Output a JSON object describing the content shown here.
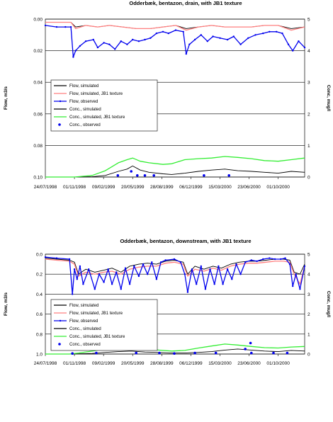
{
  "chart_data": [
    {
      "type": "line",
      "title": "Odderbæk, bentazon, drain, with JB1 texture",
      "ylabel_left": "Flow, m3/s",
      "ylabel_right": "Conc, mug/l",
      "y_left_ticks": [
        "0.00",
        "0.02",
        "0.04",
        "0.06",
        "0.08",
        "0.10"
      ],
      "y_right_ticks": [
        "5",
        "4",
        "3",
        "2",
        "1",
        "0"
      ],
      "ylim_left": [
        0.1,
        0.0
      ],
      "ylim_right": [
        0,
        5
      ],
      "left_axis_inverted": true,
      "x_tick_labels": [
        "24/07/1998",
        "01/11/1998",
        "09/02/1999",
        "20/05/1999",
        "28/08/1999",
        "06/12/1999",
        "15/03/2000",
        "23/06/2000",
        "01/10/2000"
      ],
      "x_tick_dates": [
        "1998-07-24",
        "1998-11-01",
        "1999-02-09",
        "1999-05-20",
        "1999-08-28",
        "1999-12-06",
        "2000-03-15",
        "2000-06-23",
        "2000-10-01"
      ],
      "x_range": [
        "1998-07-24",
        "2000-12-31"
      ],
      "grid": "horizontal",
      "legend_placement": "left-middle",
      "legend": [
        "Flow, simulated",
        "Flow, simulated, JB1 texture",
        "Flow, observed",
        "Conc., simulated",
        "Conc., simulated, JB1 texture",
        "Conc., observed"
      ],
      "series": [
        {
          "name": "Flow, simulated",
          "axis": "left",
          "color": "#000000",
          "x": [
            "1998-07-24",
            "1998-09-01",
            "1998-10-20",
            "1998-11-05",
            "1998-12-10",
            "1999-01-20",
            "1999-03-01",
            "1999-04-15",
            "1999-06-01",
            "1999-07-20",
            "1999-09-01",
            "1999-10-15",
            "1999-11-20",
            "2000-01-01",
            "2000-02-15",
            "2000-04-01",
            "2000-05-15",
            "2000-07-01",
            "2000-08-15",
            "2000-10-01",
            "2000-11-15",
            "2000-12-31"
          ],
          "values": [
            0.002,
            0.002,
            0.002,
            0.005,
            0.004,
            0.005,
            0.004,
            0.005,
            0.006,
            0.006,
            0.005,
            0.004,
            0.006,
            0.005,
            0.004,
            0.005,
            0.005,
            0.005,
            0.004,
            0.004,
            0.006,
            0.005
          ]
        },
        {
          "name": "Flow, simulated, JB1 texture",
          "axis": "left",
          "color": "#ff7f7f",
          "x": [
            "1998-07-24",
            "1998-09-01",
            "1998-10-20",
            "1998-11-05",
            "1998-12-10",
            "1999-01-20",
            "1999-03-01",
            "1999-04-15",
            "1999-06-01",
            "1999-07-20",
            "1999-09-01",
            "1999-10-15",
            "1999-11-20",
            "2000-01-01",
            "2000-02-15",
            "2000-04-01",
            "2000-05-15",
            "2000-07-01",
            "2000-08-15",
            "2000-10-01",
            "2000-11-15",
            "2000-12-31"
          ],
          "values": [
            0.002,
            0.002,
            0.002,
            0.006,
            0.004,
            0.005,
            0.004,
            0.005,
            0.006,
            0.006,
            0.005,
            0.004,
            0.007,
            0.005,
            0.004,
            0.005,
            0.005,
            0.005,
            0.004,
            0.004,
            0.007,
            0.005
          ]
        },
        {
          "name": "Flow, observed",
          "axis": "left",
          "color": "#0000ee",
          "x": [
            "1998-07-24",
            "1998-09-01",
            "1998-10-01",
            "1998-10-20",
            "1998-10-28",
            "1998-11-05",
            "1998-11-20",
            "1998-12-10",
            "1999-01-05",
            "1999-01-20",
            "1999-02-10",
            "1999-03-01",
            "1999-03-20",
            "1999-04-10",
            "1999-05-01",
            "1999-05-20",
            "1999-06-10",
            "1999-07-01",
            "1999-07-20",
            "1999-08-10",
            "1999-09-01",
            "1999-09-20",
            "1999-10-15",
            "1999-11-10",
            "1999-11-20",
            "1999-12-01",
            "1999-12-20",
            "2000-01-10",
            "2000-02-01",
            "2000-02-20",
            "2000-03-15",
            "2000-04-10",
            "2000-05-01",
            "2000-05-25",
            "2000-06-20",
            "2000-07-15",
            "2000-08-10",
            "2000-09-01",
            "2000-09-25",
            "2000-10-15",
            "2000-11-05",
            "2000-11-20",
            "2000-12-10",
            "2000-12-31"
          ],
          "values": [
            0.004,
            0.005,
            0.005,
            0.005,
            0.024,
            0.02,
            0.017,
            0.014,
            0.013,
            0.018,
            0.015,
            0.016,
            0.019,
            0.014,
            0.016,
            0.013,
            0.014,
            0.013,
            0.012,
            0.009,
            0.008,
            0.009,
            0.007,
            0.008,
            0.022,
            0.016,
            0.013,
            0.01,
            0.014,
            0.011,
            0.012,
            0.013,
            0.011,
            0.016,
            0.012,
            0.01,
            0.009,
            0.008,
            0.008,
            0.009,
            0.016,
            0.02,
            0.014,
            0.018
          ]
        },
        {
          "name": "Conc., simulated",
          "axis": "right",
          "color": "#000000",
          "x": [
            "1998-07-24",
            "1998-11-01",
            "1999-01-01",
            "1999-02-15",
            "1999-04-01",
            "1999-05-01",
            "1999-05-20",
            "1999-06-15",
            "1999-07-15",
            "1999-09-01",
            "1999-10-01",
            "1999-11-15",
            "2000-01-01",
            "2000-02-15",
            "2000-04-01",
            "2000-05-15",
            "2000-07-01",
            "2000-08-15",
            "2000-10-01",
            "2000-11-15",
            "2000-12-31"
          ],
          "values": [
            0,
            0,
            0.01,
            0.05,
            0.18,
            0.25,
            0.35,
            0.22,
            0.15,
            0.1,
            0.08,
            0.12,
            0.18,
            0.22,
            0.25,
            0.2,
            0.18,
            0.15,
            0.12,
            0.18,
            0.15
          ]
        },
        {
          "name": "Conc., simulated, JB1 texture",
          "axis": "right",
          "color": "#33ee33",
          "x": [
            "1998-07-24",
            "1998-11-01",
            "1999-01-01",
            "1999-02-15",
            "1999-04-01",
            "1999-05-01",
            "1999-05-20",
            "1999-06-15",
            "1999-07-15",
            "1999-09-01",
            "1999-10-01",
            "1999-11-15",
            "2000-01-01",
            "2000-02-15",
            "2000-04-01",
            "2000-05-15",
            "2000-07-01",
            "2000-08-15",
            "2000-10-01",
            "2000-11-15",
            "2000-12-31"
          ],
          "values": [
            0,
            0,
            0.05,
            0.2,
            0.45,
            0.55,
            0.6,
            0.5,
            0.45,
            0.4,
            0.42,
            0.55,
            0.58,
            0.6,
            0.65,
            0.62,
            0.58,
            0.52,
            0.5,
            0.55,
            0.6
          ]
        },
        {
          "name": "Conc., observed",
          "axis": "right",
          "color": "#0000ee",
          "x": [
            "1999-03-30",
            "1999-05-15",
            "1999-06-05",
            "1999-07-01",
            "1999-08-01",
            "2000-01-20",
            "2000-04-15"
          ],
          "values": [
            0.05,
            0.18,
            0.05,
            0.05,
            0.05,
            0.05,
            0.05
          ]
        }
      ]
    },
    {
      "type": "line",
      "title": "Odderbæk, bentazon, downstream, with JB1 texture",
      "ylabel_left": "Flow, m3/s",
      "ylabel_right": "Conc, mug/l",
      "y_left_ticks": [
        "0.0",
        "0.2",
        "0.4",
        "0.6",
        "0.8",
        "1.0"
      ],
      "y_right_ticks": [
        "5",
        "4",
        "3",
        "2",
        "1",
        "0"
      ],
      "ylim_left": [
        1.0,
        0.0
      ],
      "ylim_right": [
        0,
        5
      ],
      "left_axis_inverted": true,
      "x_tick_labels": [
        "24/07/1998",
        "01/11/1998",
        "09/02/1999",
        "20/05/1999",
        "28/08/1999",
        "06/12/1999",
        "15/03/2000",
        "23/06/2000",
        "01/10/2000"
      ],
      "x_tick_dates": [
        "1998-07-24",
        "1998-11-01",
        "1999-02-09",
        "1999-05-20",
        "1999-08-28",
        "1999-12-06",
        "2000-03-15",
        "2000-06-23",
        "2000-10-01"
      ],
      "x_range": [
        "1998-07-24",
        "2000-12-31"
      ],
      "grid": "horizontal",
      "legend_placement": "left-middle",
      "legend": [
        "Flow, simulated",
        "Flow, simulated, JB1 texture",
        "Flow, observed",
        "Conc., simulated",
        "Conc., simulated, JB1 texture",
        "Conc., observed"
      ],
      "series": [
        {
          "name": "Flow, simulated",
          "axis": "left",
          "color": "#000000",
          "x": [
            "1998-07-24",
            "1998-09-01",
            "1998-10-15",
            "1998-11-01",
            "1998-11-15",
            "1998-12-10",
            "1999-01-10",
            "1999-02-10",
            "1999-03-10",
            "1999-04-10",
            "1999-05-10",
            "1999-06-10",
            "1999-07-10",
            "1999-08-10",
            "1999-09-10",
            "1999-10-10",
            "1999-11-10",
            "1999-11-25",
            "1999-12-20",
            "2000-01-20",
            "2000-02-20",
            "2000-03-20",
            "2000-04-20",
            "2000-05-20",
            "2000-06-20",
            "2000-07-20",
            "2000-08-20",
            "2000-09-20",
            "2000-10-20",
            "2000-11-10",
            "2000-11-25",
            "2000-12-15",
            "2000-12-31"
          ],
          "values": [
            0.04,
            0.05,
            0.06,
            0.08,
            0.2,
            0.15,
            0.18,
            0.16,
            0.14,
            0.18,
            0.12,
            0.1,
            0.09,
            0.1,
            0.07,
            0.06,
            0.08,
            0.2,
            0.12,
            0.15,
            0.12,
            0.14,
            0.1,
            0.08,
            0.07,
            0.07,
            0.06,
            0.05,
            0.05,
            0.06,
            0.18,
            0.2,
            0.1
          ]
        },
        {
          "name": "Flow, simulated, JB1 texture",
          "axis": "left",
          "color": "#ff7f7f",
          "x": [
            "1998-07-24",
            "1998-09-01",
            "1998-10-15",
            "1998-11-01",
            "1998-11-15",
            "1998-12-10",
            "1999-01-10",
            "1999-02-10",
            "1999-03-10",
            "1999-04-10",
            "1999-05-10",
            "1999-06-10",
            "1999-07-10",
            "1999-08-10",
            "1999-09-10",
            "1999-10-10",
            "1999-11-10",
            "1999-11-25",
            "1999-12-20",
            "2000-01-20",
            "2000-02-20",
            "2000-03-20",
            "2000-04-20",
            "2000-05-20",
            "2000-06-20",
            "2000-07-20",
            "2000-08-20",
            "2000-09-20",
            "2000-10-20",
            "2000-11-10",
            "2000-11-25",
            "2000-12-15",
            "2000-12-31"
          ],
          "values": [
            0.05,
            0.06,
            0.07,
            0.1,
            0.22,
            0.18,
            0.2,
            0.18,
            0.17,
            0.2,
            0.15,
            0.13,
            0.12,
            0.12,
            0.09,
            0.08,
            0.1,
            0.22,
            0.15,
            0.17,
            0.14,
            0.16,
            0.12,
            0.1,
            0.09,
            0.09,
            0.08,
            0.07,
            0.07,
            0.08,
            0.2,
            0.3,
            0.12
          ]
        },
        {
          "name": "Flow, observed",
          "axis": "left",
          "color": "#0000ee",
          "x": [
            "1998-07-24",
            "1998-09-01",
            "1998-10-15",
            "1998-10-25",
            "1998-11-01",
            "1998-11-10",
            "1998-11-20",
            "1998-12-01",
            "1998-12-20",
            "1999-01-10",
            "1999-01-25",
            "1999-02-10",
            "1999-02-25",
            "1999-03-10",
            "1999-03-25",
            "1999-04-10",
            "1999-04-25",
            "1999-05-10",
            "1999-05-25",
            "1999-06-10",
            "1999-06-25",
            "1999-07-10",
            "1999-07-25",
            "1999-08-10",
            "1999-08-25",
            "1999-09-10",
            "1999-10-10",
            "1999-11-01",
            "1999-11-15",
            "1999-11-25",
            "1999-12-10",
            "1999-12-25",
            "2000-01-10",
            "2000-01-25",
            "2000-02-10",
            "2000-02-25",
            "2000-03-10",
            "2000-03-25",
            "2000-04-10",
            "2000-04-25",
            "2000-05-10",
            "2000-05-25",
            "2000-06-10",
            "2000-07-01",
            "2000-07-20",
            "2000-08-10",
            "2000-09-01",
            "2000-09-20",
            "2000-10-10",
            "2000-10-25",
            "2000-11-10",
            "2000-11-20",
            "2000-12-01",
            "2000-12-15",
            "2000-12-31"
          ],
          "values": [
            0.03,
            0.04,
            0.05,
            0.4,
            0.15,
            0.25,
            0.12,
            0.3,
            0.15,
            0.35,
            0.2,
            0.28,
            0.15,
            0.3,
            0.18,
            0.35,
            0.14,
            0.3,
            0.12,
            0.22,
            0.1,
            0.2,
            0.08,
            0.25,
            0.08,
            0.06,
            0.05,
            0.08,
            0.2,
            0.38,
            0.15,
            0.3,
            0.12,
            0.35,
            0.15,
            0.3,
            0.12,
            0.3,
            0.15,
            0.25,
            0.1,
            0.2,
            0.08,
            0.06,
            0.07,
            0.05,
            0.04,
            0.05,
            0.05,
            0.04,
            0.1,
            0.32,
            0.2,
            0.35,
            0.12
          ]
        },
        {
          "name": "Conc., simulated",
          "axis": "right",
          "color": "#000000",
          "x": [
            "1998-07-24",
            "1998-10-15",
            "1998-11-15",
            "1999-01-01",
            "1999-02-15",
            "1999-04-01",
            "1999-05-15",
            "1999-07-01",
            "1999-08-15",
            "1999-10-01",
            "1999-11-15",
            "2000-01-01",
            "2000-02-15",
            "2000-04-01",
            "2000-05-15",
            "2000-07-01",
            "2000-08-15",
            "2000-10-01",
            "2000-11-15",
            "2000-12-31"
          ],
          "values": [
            0,
            0,
            0.01,
            0.03,
            0.08,
            0.12,
            0.15,
            0.1,
            0.08,
            0.05,
            0.05,
            0.08,
            0.12,
            0.2,
            0.25,
            0.2,
            0.15,
            0.12,
            0.18,
            0.15
          ]
        },
        {
          "name": "Conc., simulated, JB1 texture",
          "axis": "right",
          "color": "#33ee33",
          "x": [
            "1998-07-24",
            "1998-10-15",
            "1998-11-15",
            "1999-01-01",
            "1999-02-15",
            "1999-04-01",
            "1999-05-15",
            "1999-07-01",
            "1999-08-15",
            "1999-10-01",
            "1999-11-15",
            "2000-01-01",
            "2000-02-15",
            "2000-04-01",
            "2000-05-15",
            "2000-07-01",
            "2000-08-15",
            "2000-10-01",
            "2000-11-15",
            "2000-12-31"
          ],
          "values": [
            0,
            0,
            0.05,
            0.15,
            0.25,
            0.3,
            0.32,
            0.25,
            0.2,
            0.15,
            0.18,
            0.3,
            0.4,
            0.5,
            0.45,
            0.38,
            0.32,
            0.3,
            0.35,
            0.38
          ]
        },
        {
          "name": "Conc., observed",
          "axis": "right",
          "color": "#0000ee",
          "x": [
            "1998-10-25",
            "1999-01-15",
            "1999-06-01",
            "1999-08-20",
            "1999-10-10",
            "1999-12-20",
            "2000-03-01",
            "2000-06-10",
            "2000-06-28",
            "2000-07-01",
            "2000-09-15",
            "2000-11-01"
          ],
          "values": [
            0.03,
            0.05,
            0.05,
            0.05,
            0.03,
            0.05,
            0.05,
            0.25,
            0.55,
            0.05,
            0.05,
            0.05
          ]
        }
      ]
    }
  ]
}
